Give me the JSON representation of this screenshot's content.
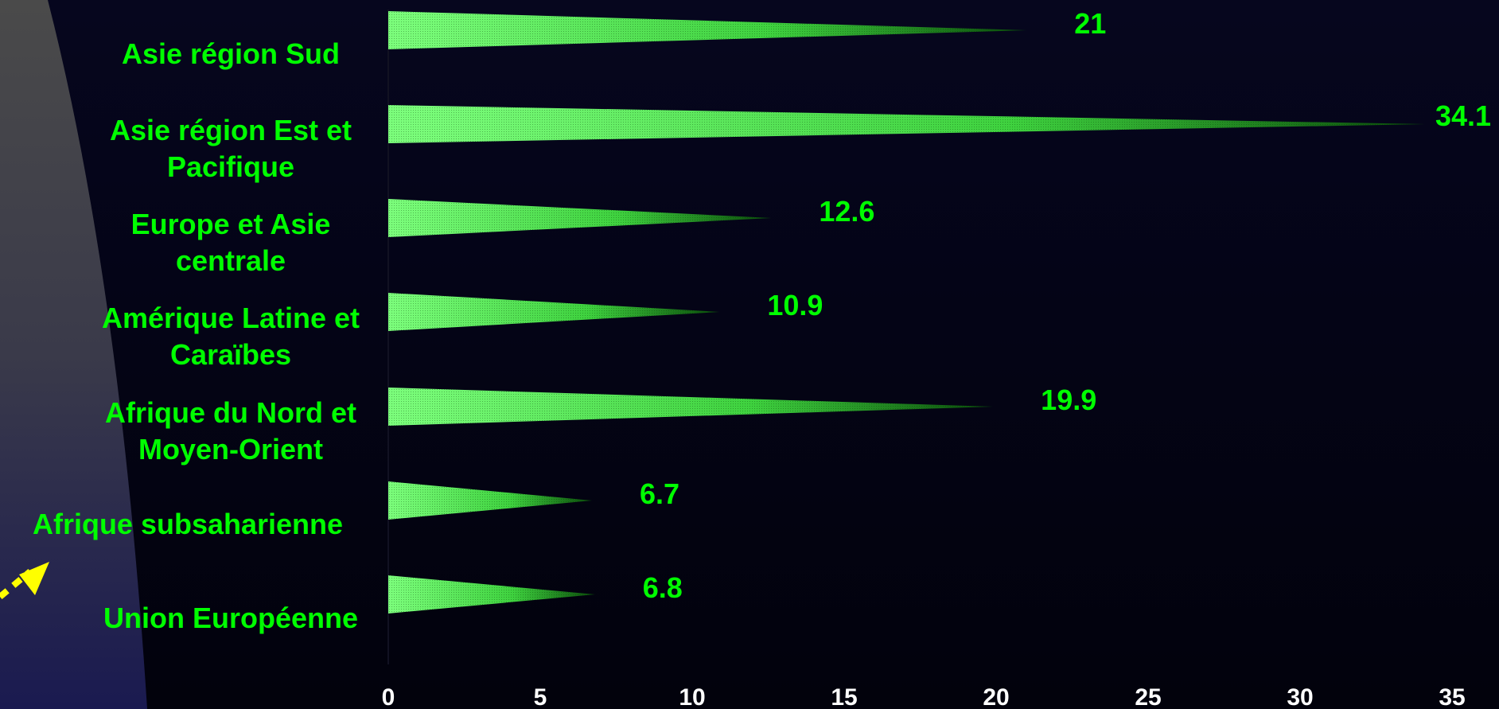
{
  "chart_data": {
    "type": "bar",
    "orientation": "horizontal",
    "title": "",
    "xlabel": "",
    "ylabel": "",
    "categories": [
      [
        "Asie région Sud"
      ],
      [
        "Asie région Est et",
        "Pacifique"
      ],
      [
        "Europe et Asie",
        "centrale"
      ],
      [
        "Amérique Latine et",
        "Caraïbes"
      ],
      [
        "Afrique du Nord et",
        "Moyen-Orient"
      ],
      [
        "Afrique subsaharienne"
      ],
      [
        "Union Européenne"
      ]
    ],
    "values": [
      21,
      34.1,
      12.6,
      10.9,
      19.9,
      6.7,
      6.8
    ],
    "value_labels": [
      "21",
      "34.1",
      "12.6",
      "10.9",
      "19.9",
      "6.7",
      "6.8"
    ],
    "xlim": [
      0,
      35
    ],
    "xticks": [
      "0",
      "5",
      "10",
      "15",
      "20",
      "25",
      "30",
      "35"
    ],
    "grid": false,
    "legend": "none",
    "bar_shape": "cone",
    "colors": {
      "bar": "#5ef05e",
      "label": "#00ff00",
      "tick": "#ffffff",
      "arrow": "#ffff00"
    }
  }
}
